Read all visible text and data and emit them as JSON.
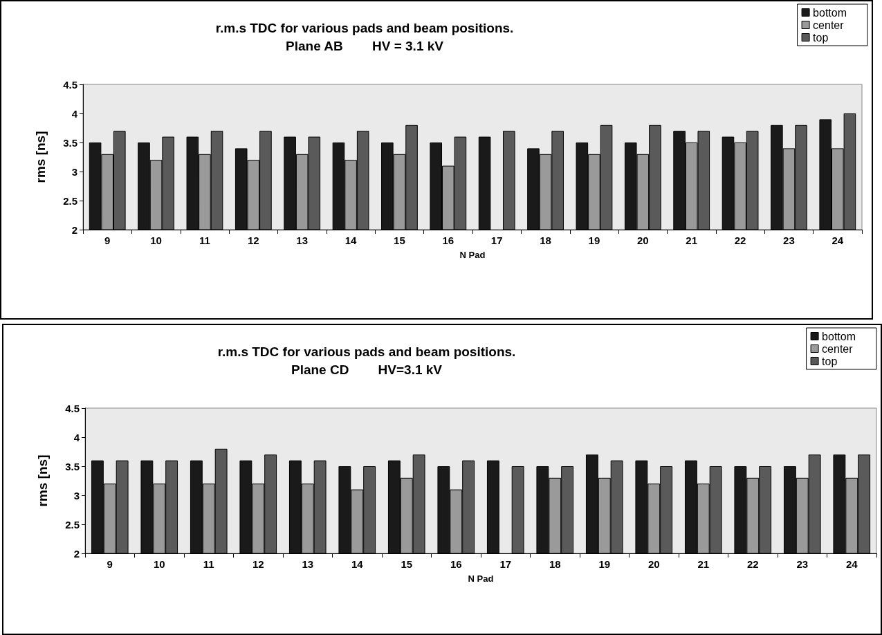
{
  "chart_data": [
    {
      "type": "bar",
      "title": "r.m.s TDC for various pads and beam positions.\nPlane AB        HV = 3.1 kV",
      "xlabel": "N Pad",
      "ylabel": "rms [ns]",
      "categories": [
        "9",
        "10",
        "11",
        "12",
        "13",
        "14",
        "15",
        "16",
        "17",
        "18",
        "19",
        "20",
        "21",
        "22",
        "23",
        "24"
      ],
      "series": [
        {
          "name": "bottom",
          "color": "#1a1a1a",
          "values": [
            3.5,
            3.5,
            3.6,
            3.4,
            3.6,
            3.5,
            3.5,
            3.5,
            3.6,
            3.4,
            3.5,
            3.5,
            3.7,
            3.6,
            3.8,
            3.9
          ]
        },
        {
          "name": "center",
          "color": "#9a9a9a",
          "values": [
            3.3,
            3.2,
            3.3,
            3.2,
            3.3,
            3.2,
            3.3,
            3.1,
            null,
            3.3,
            3.3,
            3.3,
            3.5,
            3.5,
            3.4,
            3.4
          ]
        },
        {
          "name": "top",
          "color": "#5a5a5a",
          "values": [
            3.7,
            3.6,
            3.7,
            3.7,
            3.6,
            3.7,
            3.8,
            3.6,
            3.7,
            3.7,
            3.8,
            3.8,
            3.7,
            3.7,
            3.8,
            4.0
          ]
        }
      ],
      "ylim": [
        2,
        4.5
      ],
      "yticks": [
        2,
        2.5,
        3,
        3.5,
        4,
        4.5
      ],
      "grid": false,
      "legend": "top right"
    },
    {
      "type": "bar",
      "title": "r.m.s TDC for various pads and beam positions.\nPlane CD        HV=3.1 kV",
      "xlabel": "N Pad",
      "ylabel": "rms [ns]",
      "categories": [
        "9",
        "10",
        "11",
        "12",
        "13",
        "14",
        "15",
        "16",
        "17",
        "18",
        "19",
        "20",
        "21",
        "22",
        "23",
        "24"
      ],
      "series": [
        {
          "name": "bottom",
          "color": "#1a1a1a",
          "values": [
            3.6,
            3.6,
            3.6,
            3.6,
            3.6,
            3.5,
            3.6,
            3.5,
            3.6,
            3.5,
            3.7,
            3.6,
            3.6,
            3.5,
            3.5,
            3.7
          ]
        },
        {
          "name": "center",
          "color": "#9a9a9a",
          "values": [
            3.2,
            3.2,
            3.2,
            3.2,
            3.2,
            3.1,
            3.3,
            3.1,
            null,
            3.3,
            3.3,
            3.2,
            3.2,
            3.3,
            3.3,
            3.3
          ]
        },
        {
          "name": "top",
          "color": "#5a5a5a",
          "values": [
            3.6,
            3.6,
            3.8,
            3.7,
            3.6,
            3.5,
            3.7,
            3.6,
            3.5,
            3.5,
            3.6,
            3.5,
            3.5,
            3.5,
            3.7,
            3.7
          ]
        }
      ],
      "ylim": [
        2,
        4.5
      ],
      "yticks": [
        2,
        2.5,
        3,
        3.5,
        4,
        4.5
      ],
      "grid": false,
      "legend": "top right"
    }
  ]
}
